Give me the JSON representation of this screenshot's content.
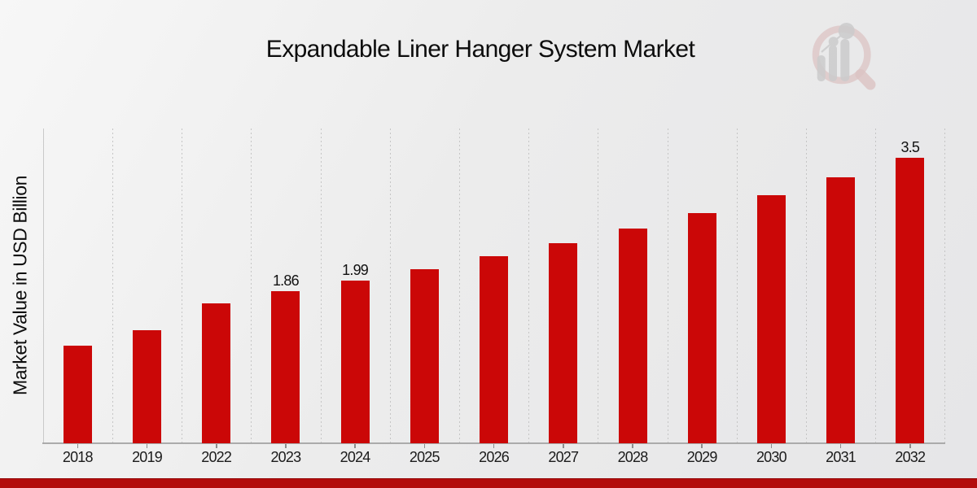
{
  "chart_data": {
    "type": "bar",
    "title": "Expandable Liner Hanger System Market",
    "ylabel": "Market Value in USD Billion",
    "xlabel": "",
    "unit": "USD Billion",
    "categories": [
      "2018",
      "2019",
      "2022",
      "2023",
      "2024",
      "2025",
      "2026",
      "2027",
      "2028",
      "2029",
      "2030",
      "2031",
      "2032"
    ],
    "values": [
      1.2,
      1.39,
      1.72,
      1.86,
      1.99,
      2.13,
      2.29,
      2.45,
      2.63,
      2.82,
      3.04,
      3.26,
      3.5
    ],
    "data_labels": {
      "2023": "1.86",
      "2024": "1.99",
      "2032": "3.5"
    },
    "ylim": [
      0,
      3.86
    ],
    "grid": "vertical dotted gridlines between categories, no horizontal gridlines",
    "legend": "none",
    "bar_color": "#cb0707",
    "axis_color": "#ababab",
    "gridline_color": "#c5c5c5",
    "tick_label_color": "#1b1b1b",
    "value_label_color": "#111111"
  },
  "footer": {
    "accent_bar_color": "#b30c0c"
  },
  "branding": {
    "watermark_icon": "magnifier-bar-chart-logo",
    "ring_color": "#cf9d9d",
    "bar_color": "#adadad"
  }
}
